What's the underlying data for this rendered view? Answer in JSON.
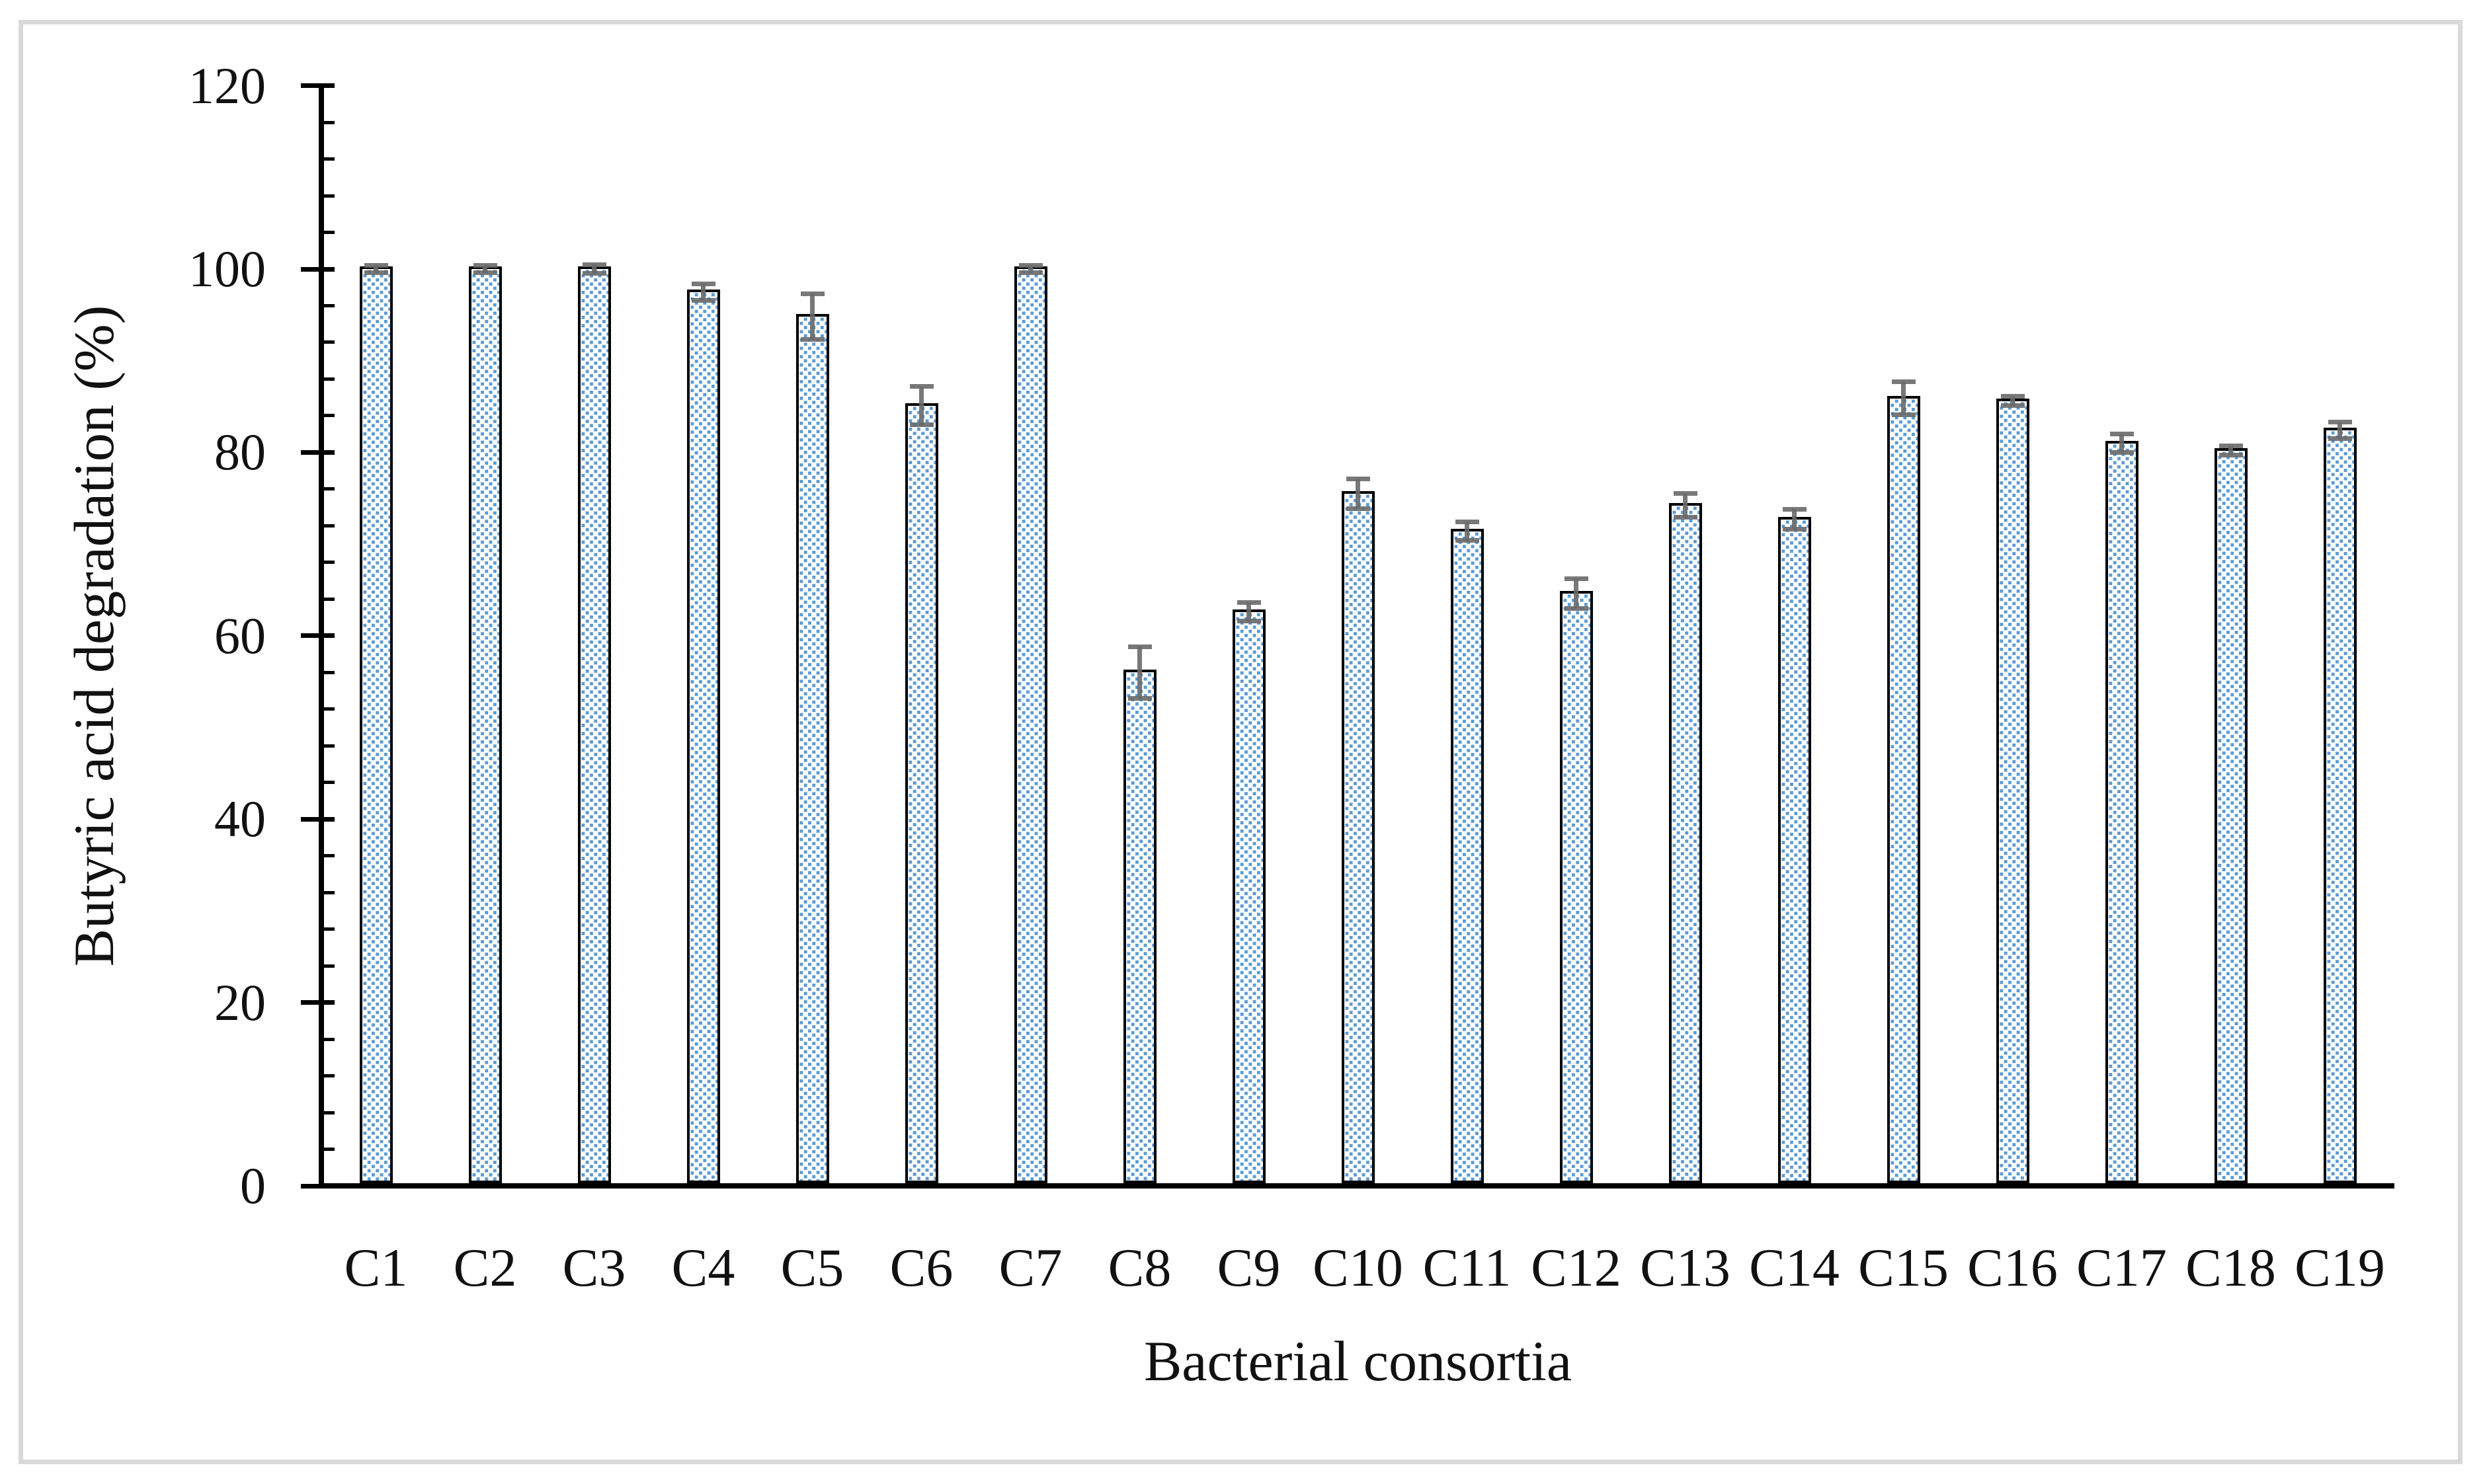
{
  "figure": {
    "background_color": "#FFFFFF",
    "border_color": "#D9D9D9",
    "text_color": "#111111"
  },
  "chart_data": {
    "type": "bar",
    "title": "",
    "xlabel": "Bacterial consortia",
    "ylabel": "Butyric acid degradation (%)",
    "categories": [
      "C1",
      "C2",
      "C3",
      "C4",
      "C5",
      "C6",
      "C7",
      "C8",
      "C9",
      "C10",
      "C11",
      "C12",
      "C13",
      "C14",
      "C15",
      "C16",
      "C17",
      "C18",
      "C19"
    ],
    "values": [
      100,
      100,
      100,
      97.5,
      94.8,
      85.1,
      100,
      56.0,
      62.6,
      75.5,
      71.4,
      64.6,
      74.2,
      72.7,
      85.9,
      85.6,
      81.0,
      80.2,
      82.4
    ],
    "errors": [
      0.4,
      0.4,
      0.5,
      0.9,
      2.5,
      2.1,
      0.4,
      2.8,
      1.0,
      1.6,
      1.0,
      1.6,
      1.3,
      1.1,
      1.8,
      0.5,
      1.0,
      0.5,
      0.9
    ],
    "ylim": [
      0,
      120
    ],
    "yticks": [
      0,
      20,
      40,
      60,
      80,
      100,
      120
    ],
    "minor_tick_unit": 4,
    "grid": false,
    "legend": "none",
    "bar_fill_color": "#5B9BD5",
    "bar_pattern": "white-dot-grid",
    "bar_border_color": "#000000",
    "error_bar_color": "#696969"
  }
}
